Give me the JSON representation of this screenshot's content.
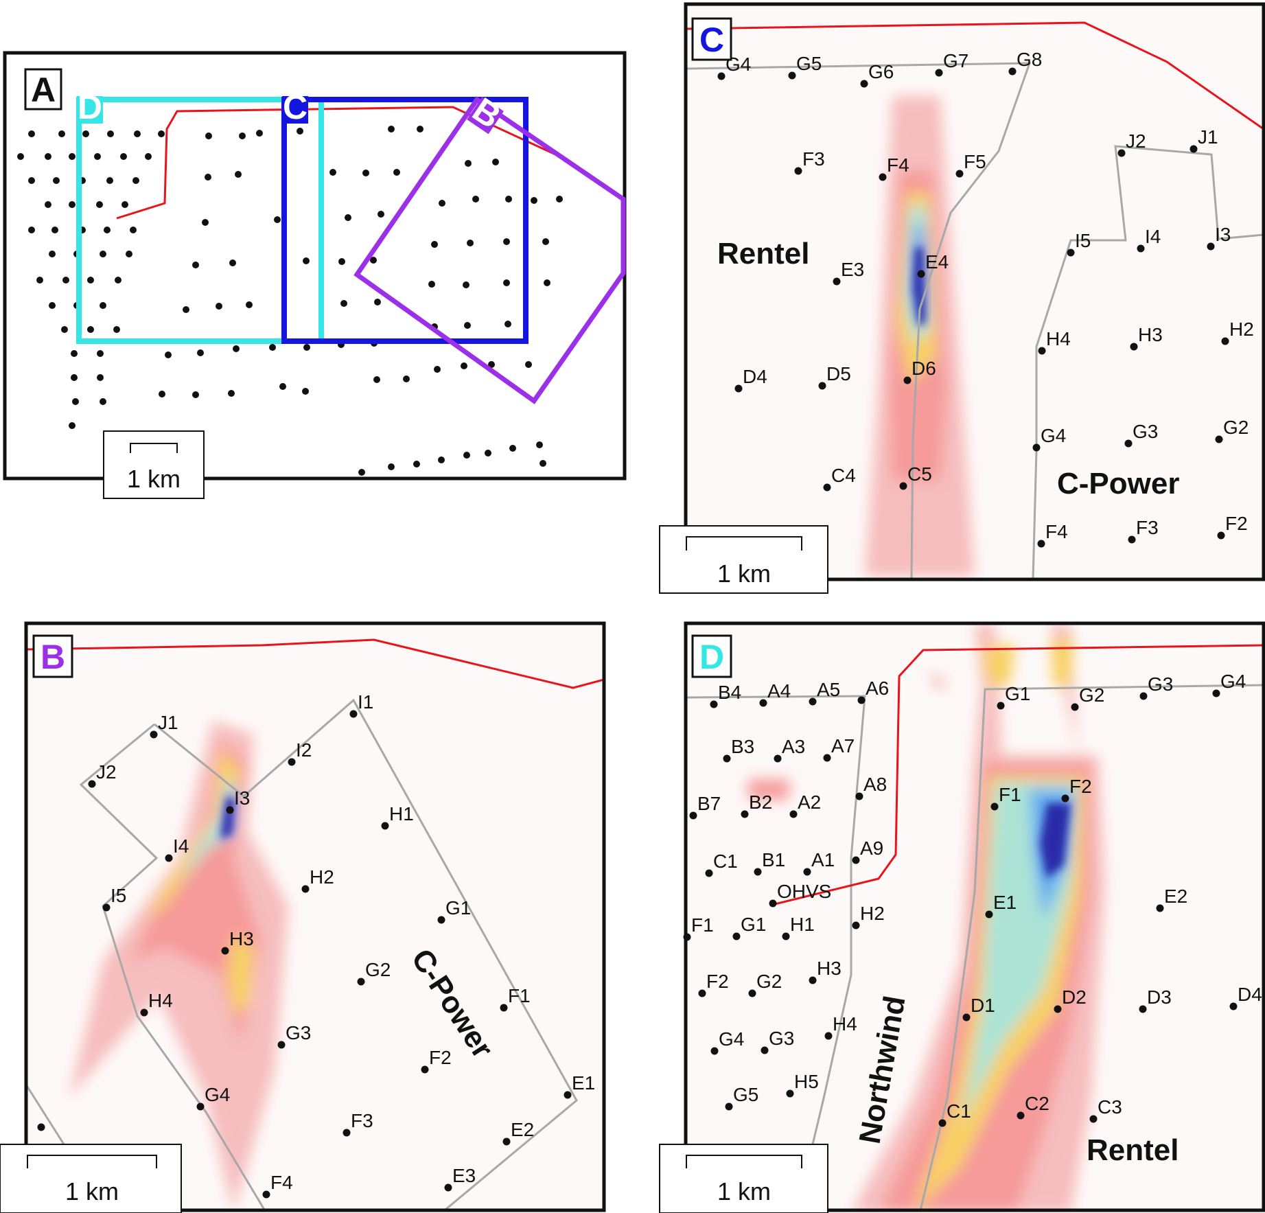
{
  "panels": {
    "A": {
      "tag": "A",
      "scale": "1 km",
      "boxes": [
        {
          "tag": "D",
          "color": "#34e6e6"
        },
        {
          "tag": "C",
          "color": "#1515e0"
        },
        {
          "tag": "B",
          "color": "#9b30e8"
        }
      ]
    },
    "B": {
      "tag": "B",
      "tag_color": "#9b30e8",
      "scale": "1 km",
      "farm": "C-Power",
      "turbines": [
        "J1",
        "J2",
        "I1",
        "I2",
        "I3",
        "I4",
        "I5",
        "H1",
        "H2",
        "H3",
        "H4",
        "G1",
        "G2",
        "G3",
        "G4",
        "F1",
        "F2",
        "F3",
        "F4",
        "E1",
        "E2",
        "E3"
      ]
    },
    "C": {
      "tag": "C",
      "tag_color": "#1515e0",
      "scale": "1 km",
      "farms": [
        "Rentel",
        "C-Power"
      ],
      "turbines": [
        "G4",
        "G5",
        "G6",
        "G7",
        "G8",
        "F3",
        "F4",
        "F5",
        "E3",
        "E4",
        "D4",
        "D5",
        "D6",
        "C4",
        "C5",
        "J2",
        "J1",
        "I5",
        "I4",
        "I3",
        "H4",
        "H3",
        "H2",
        "G4",
        "G3",
        "G2",
        "F4",
        "F3",
        "F2"
      ]
    },
    "D": {
      "tag": "D",
      "tag_color": "#34e6e6",
      "scale": "1 km",
      "farms": [
        "Northwind",
        "Rentel"
      ],
      "turbines": [
        "B4",
        "A4",
        "A5",
        "A6",
        "B3",
        "A3",
        "A7",
        "A8",
        "B7",
        "B2",
        "A2",
        "C1",
        "B1",
        "A1",
        "A9",
        "OHVS",
        "F1",
        "G1",
        "H1",
        "H2",
        "F2",
        "G2",
        "H3",
        "G4",
        "G3",
        "H4",
        "G5",
        "H5",
        "G1",
        "G2",
        "G3",
        "G4",
        "F1",
        "F2",
        "E1",
        "E2",
        "D1",
        "D2",
        "D3",
        "D4",
        "C1",
        "C2",
        "C3"
      ]
    }
  },
  "colors": {
    "coastline": "#e8141a",
    "farm_boundary": "#a8a8a8",
    "frame": "#111111"
  }
}
